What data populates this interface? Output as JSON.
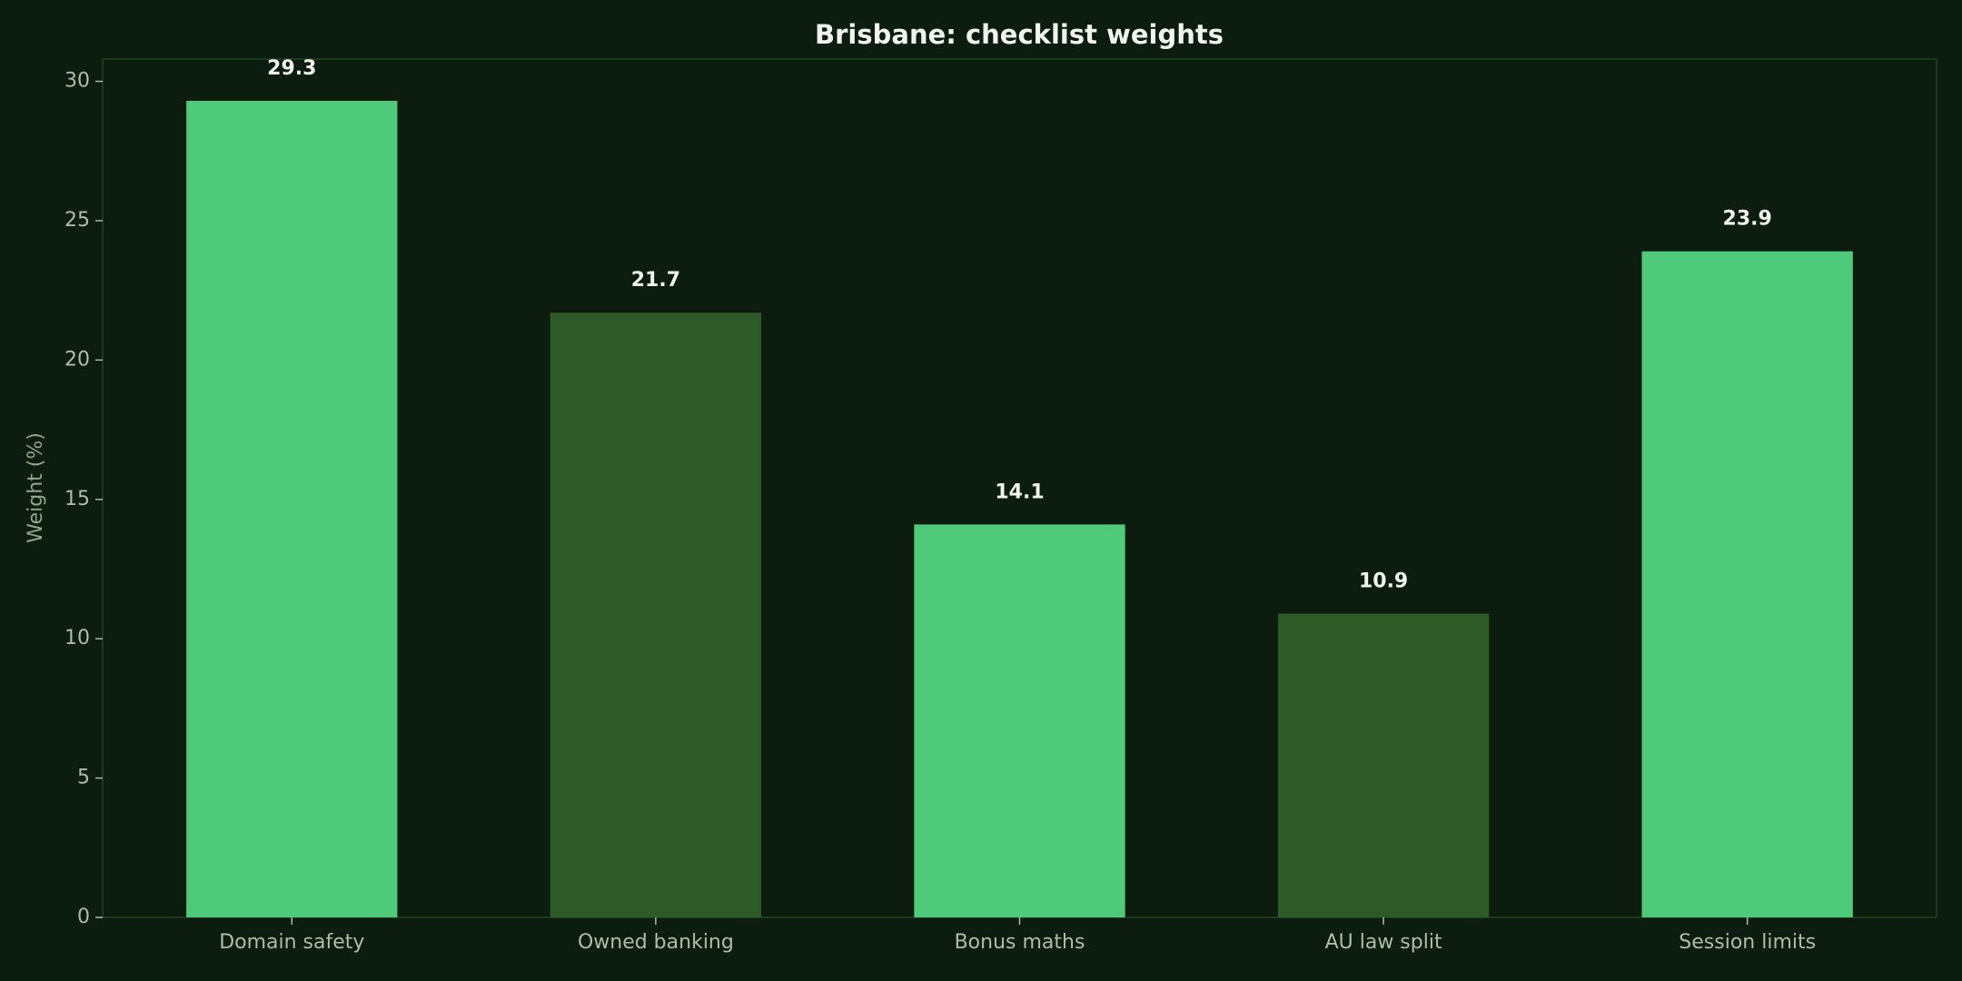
{
  "chart_data": {
    "type": "bar",
    "title": "Brisbane: checklist weights",
    "y_label": "Weight (%)",
    "categories": [
      "Domain safety",
      "Owned banking",
      "Bonus maths",
      "AU law split",
      "Session limits"
    ],
    "values": [
      29.3,
      21.7,
      14.1,
      10.9,
      23.9
    ],
    "colors": [
      "#4fc97a",
      "#2e5a28",
      "#4fc97a",
      "#2e5a28",
      "#4fc97a"
    ],
    "ylim": [
      0,
      30.8
    ],
    "yticks": [
      0,
      5,
      10,
      15,
      20,
      25,
      30
    ],
    "grid": false
  }
}
